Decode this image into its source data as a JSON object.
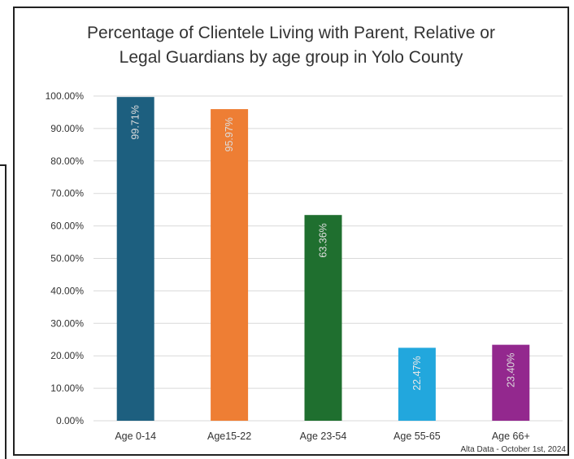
{
  "chart_data": {
    "type": "bar",
    "title_lines": [
      "Percentage of Clientele Living with Parent, Relative or",
      "Legal Guardians by age group in Yolo County"
    ],
    "categories": [
      "Age 0-14",
      "Age15-22",
      "Age 23-54",
      "Age 55-65",
      "Age 66+"
    ],
    "values": [
      99.71,
      95.97,
      63.36,
      22.47,
      23.4
    ],
    "value_labels": [
      "99.71%",
      "95.97%",
      "63.36%",
      "22.47%",
      "23.40%"
    ],
    "bar_colors": [
      "#1d5f7f",
      "#ee7e34",
      "#1f6f2f",
      "#22a7dd",
      "#93288e"
    ],
    "value_label_colors": [
      "#dddddd",
      "#dddddd",
      "#dddddd",
      "#e8e8e8",
      "#dddddd"
    ],
    "ylim": [
      0,
      100
    ],
    "yticks": [
      0,
      10,
      20,
      30,
      40,
      50,
      60,
      70,
      80,
      90,
      100
    ],
    "ytick_labels": [
      "0.00%",
      "10.00%",
      "20.00%",
      "30.00%",
      "40.00%",
      "50.00%",
      "60.00%",
      "70.00%",
      "80.00%",
      "90.00%",
      "100.00%"
    ],
    "grid": true,
    "legend": "none",
    "source_note": "Alta Data - October 1st, 2024"
  },
  "colors": {
    "gridline": "#d9d9d9",
    "text": "#333333"
  }
}
